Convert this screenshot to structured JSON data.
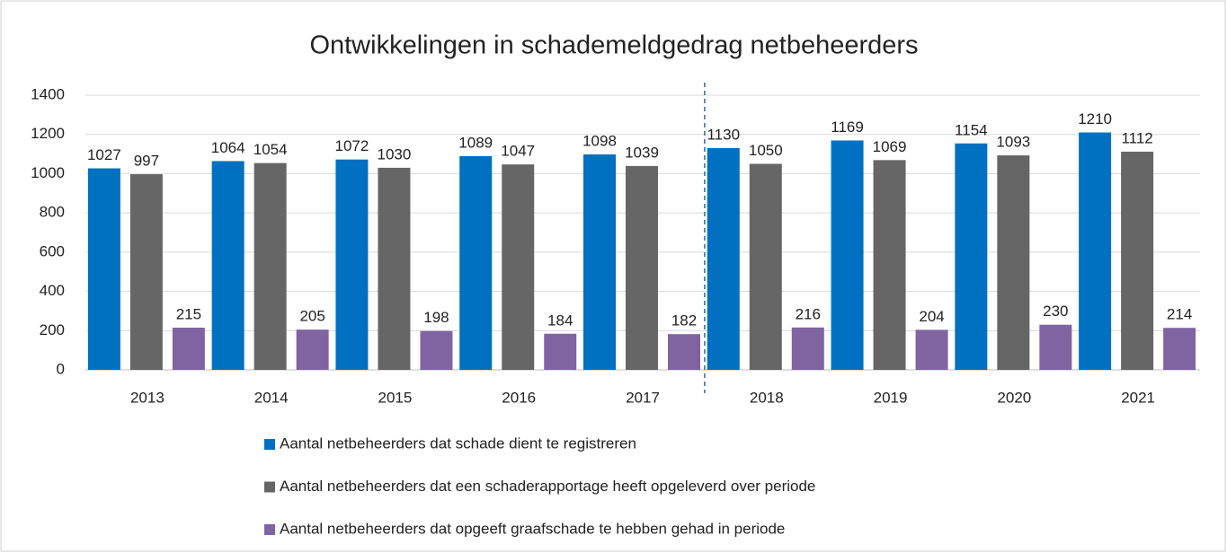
{
  "chart_data": {
    "type": "bar",
    "title": "Ontwikkelingen in schademeldgedrag netbeheerders",
    "categories": [
      "2013",
      "2014",
      "2015",
      "2016",
      "2017",
      "2018",
      "2019",
      "2020",
      "2021"
    ],
    "series": [
      {
        "name": "Aantal netbeheerders dat schade dient te registreren",
        "color": "#0070c0",
        "values": [
          1027,
          1064,
          1072,
          1089,
          1098,
          1130,
          1169,
          1154,
          1210
        ]
      },
      {
        "name": "Aantal netbeheerders dat een schaderapportage heeft opgeleverd over periode",
        "color": "#666666",
        "values": [
          997,
          1054,
          1030,
          1047,
          1039,
          1050,
          1069,
          1093,
          1112
        ]
      },
      {
        "name": "Aantal netbeheerders dat opgeeft graafschade te hebben gehad in periode",
        "color": "#8064a2",
        "values": [
          215,
          205,
          198,
          184,
          182,
          216,
          204,
          230,
          214
        ]
      }
    ],
    "ylim": [
      0,
      1400
    ],
    "yticks": [
      0,
      200,
      400,
      600,
      800,
      1000,
      1200,
      1400
    ],
    "grid": true
  }
}
